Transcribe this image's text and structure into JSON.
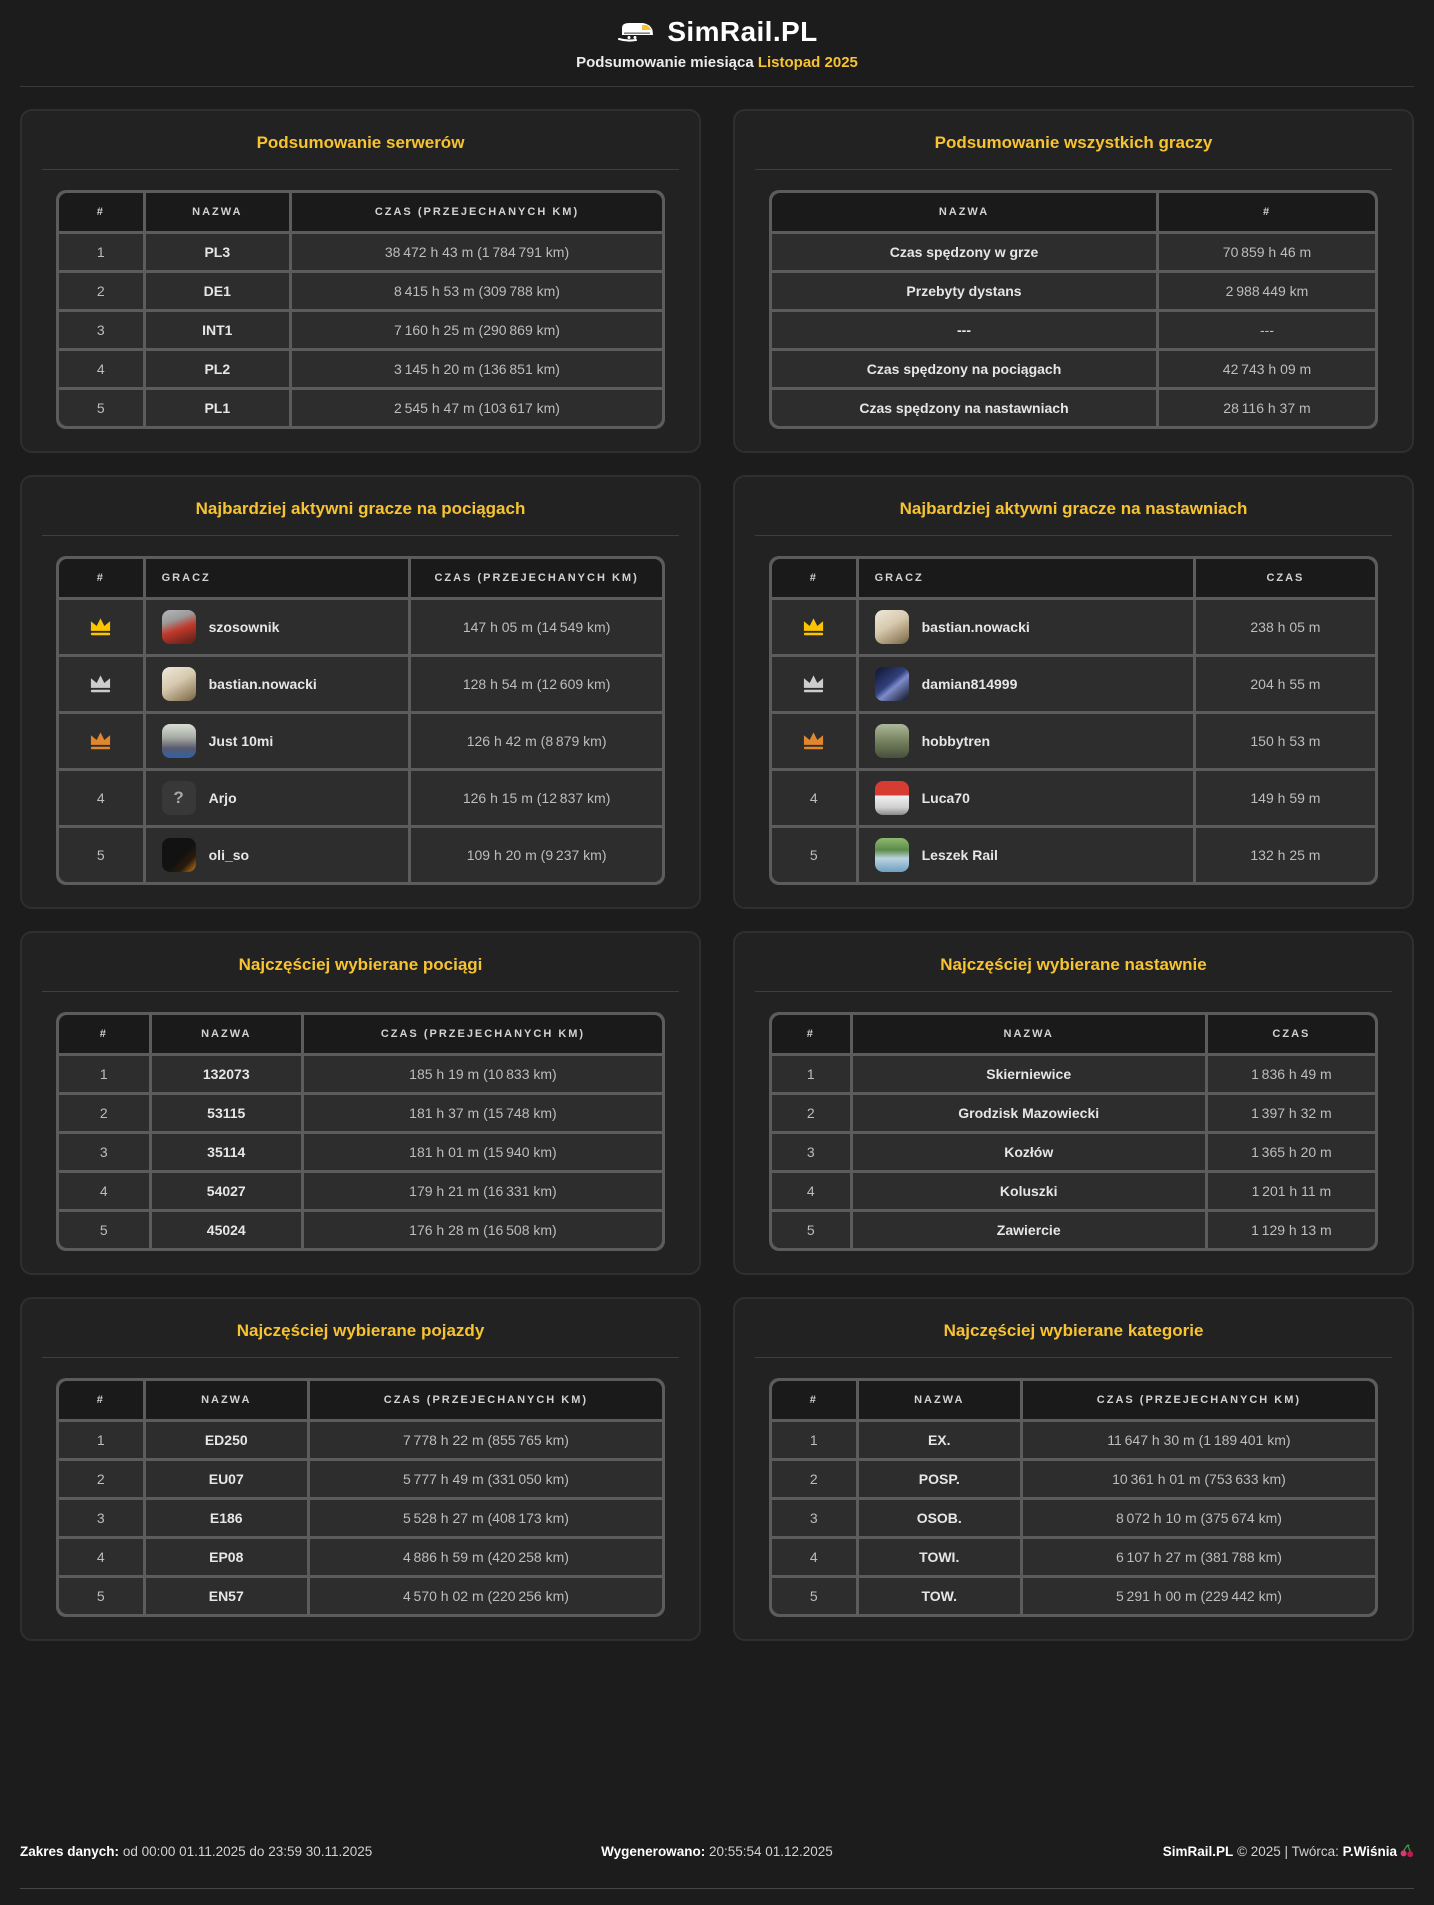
{
  "header": {
    "title": "SimRail.PL",
    "subtitle_prefix": "Podsumowanie miesiąca",
    "subtitle_month": "Listopad 2025",
    "logo_icon": "train-icon"
  },
  "colors": {
    "accent": "#f7c331",
    "page_bg": "#1c1c1c",
    "panel_bg": "#222222",
    "table_border": "#5c5c5c",
    "header_cell_bg": "#1a1a1a",
    "cell_bg": "#2d2d2d",
    "crown": {
      "gold": "#fdc500",
      "silver": "#cdcdcd",
      "bronze": "#e0862e"
    }
  },
  "tables": {
    "servers": {
      "title": "Podsumowanie serwerów",
      "columns": [
        {
          "label": "#",
          "width": "12%"
        },
        {
          "label": "NAZWA",
          "width": "22%",
          "bold": true
        },
        {
          "label": "CZAS (PRZEJECHANYCH KM)"
        }
      ],
      "rows": [
        [
          "1",
          "PL3",
          "38 472 h 43 m (1 784 791 km)"
        ],
        [
          "2",
          "DE1",
          "8 415 h 53 m (309 788 km)"
        ],
        [
          "3",
          "INT1",
          "7 160 h 25 m (290 869 km)"
        ],
        [
          "4",
          "PL2",
          "3 145 h 20 m (136 851 km)"
        ],
        [
          "5",
          "PL1",
          "2 545 h 47 m (103 617 km)"
        ]
      ]
    },
    "overall": {
      "title": "Podsumowanie wszystkich graczy",
      "columns": [
        {
          "label": "NAZWA",
          "bold": true
        },
        {
          "label": "#",
          "width": "34%"
        }
      ],
      "rows": [
        [
          "Czas spędzony w grze",
          "70 859 h 46 m"
        ],
        [
          "Przebyty dystans",
          "2 988 449 km"
        ],
        [
          "---",
          "---"
        ],
        [
          "Czas spędzony na pociągach",
          "42 743 h 09 m"
        ],
        [
          "Czas spędzony na nastawniach",
          "28 116 h 37 m"
        ]
      ]
    },
    "players_trains": {
      "title": "Najbardziej aktywni gracze na pociągach",
      "columns": [
        {
          "label": "#",
          "width": "12%"
        },
        {
          "label": "GRACZ",
          "align": "left",
          "bold": true
        },
        {
          "label": "CZAS (PRZEJECHANYCH KM)",
          "width": "40%"
        }
      ],
      "rows": [
        [
          {
            "crown": "gold"
          },
          {
            "player": {
              "name": "szosownik",
              "tone": "gold",
              "avatar_bg": "linear-gradient(160deg,#b7b7b7 0%,#9b9b9b 30%,#c0392b 55%,#71241c 88%)"
            }
          },
          "147 h 05 m (14 549 km)"
        ],
        [
          {
            "crown": "silver"
          },
          {
            "player": {
              "name": "bastian.nowacki",
              "avatar_bg": "linear-gradient(150deg,#efe9da 0%,#d6c9ae 45%,#9c8a69 80%,#6e5f45 100%)"
            }
          },
          "128 h 54 m (12 609 km)"
        ],
        [
          {
            "crown": "bronze"
          },
          {
            "player": {
              "name": "Just 10mi",
              "tone": "bronze",
              "avatar_bg": "linear-gradient(180deg,#d8ded6 0%,#a7aba3 40%,#57596e 72%,#2f62a8 100%)"
            }
          },
          "126 h 42 m (8 879 km)"
        ],
        [
          "4",
          {
            "player": {
              "name": "Arjo",
              "avatar_bg": "#383838",
              "avatar_glyph": "?"
            }
          },
          "126 h 15 m (12 837 km)"
        ],
        [
          "5",
          {
            "player": {
              "name": "oli_so",
              "avatar_bg": "linear-gradient(135deg,#121212 55%,#2a1c0a 75%,#d07a1f 100%)"
            }
          },
          "109 h 20 m (9 237 km)"
        ]
      ]
    },
    "players_boxes": {
      "title": "Najbardziej aktywni gracze na nastawniach",
      "columns": [
        {
          "label": "#",
          "width": "12%"
        },
        {
          "label": "GRACZ",
          "align": "left",
          "bold": true
        },
        {
          "label": "CZAS",
          "width": "28%"
        }
      ],
      "rows": [
        [
          {
            "crown": "gold"
          },
          {
            "player": {
              "name": "bastian.nowacki",
              "tone": "gold",
              "avatar_bg": "linear-gradient(150deg,#efe9da 0%,#d6c9ae 45%,#9c8a69 80%,#6e5f45 100%)"
            }
          },
          "238 h 05 m"
        ],
        [
          {
            "crown": "silver"
          },
          {
            "player": {
              "name": "damian814999",
              "avatar_bg": "linear-gradient(140deg,#10142e 0%,#31407c 45%,#7d8cc9 58%,#0d0f20 100%)"
            }
          },
          "204 h 55 m"
        ],
        [
          {
            "crown": "bronze"
          },
          {
            "player": {
              "name": "hobbytren",
              "tone": "bronze",
              "avatar_bg": "linear-gradient(180deg,#aeb89b 0%,#75815f 50%,#46503a 100%)"
            }
          },
          "150 h 53 m"
        ],
        [
          "4",
          {
            "player": {
              "name": "Luca70",
              "avatar_bg": "linear-gradient(180deg,#d63c31 0%,#d63c31 42%,#f2f2f2 42%,#cfcfcf 78%,#8a8a8a 100%)"
            }
          },
          "149 h 59 m"
        ],
        [
          "5",
          {
            "player": {
              "name": "Leszek Rail",
              "avatar_bg": "linear-gradient(180deg,#8fb96f 0%,#5c8b4a 35%,#bcd3e0 60%,#6f9fc0 100%)"
            }
          },
          "132 h 25 m"
        ]
      ]
    },
    "trains": {
      "title": "Najczęściej wybierane pociągi",
      "columns": [
        {
          "label": "#",
          "width": "13%"
        },
        {
          "label": "NAZWA",
          "width": "23%",
          "bold": true
        },
        {
          "label": "CZAS (PRZEJECHANYCH KM)"
        }
      ],
      "rows": [
        [
          "1",
          "132073",
          "185 h 19 m (10 833 km)"
        ],
        [
          "2",
          "53115",
          "181 h 37 m (15 748 km)"
        ],
        [
          "3",
          "35114",
          "181 h 01 m (15 940 km)"
        ],
        [
          "4",
          "54027",
          "179 h 21 m (16 331 km)"
        ],
        [
          "5",
          "45024",
          "176 h 28 m (16 508 km)"
        ]
      ]
    },
    "boxes": {
      "title": "Najczęściej wybierane nastawnie",
      "columns": [
        {
          "label": "#",
          "width": "11%"
        },
        {
          "label": "NAZWA",
          "bold": true
        },
        {
          "label": "CZAS",
          "width": "26%"
        }
      ],
      "rows": [
        [
          "1",
          "Skierniewice",
          "1 836 h 49 m"
        ],
        [
          "2",
          "Grodzisk Mazowiecki",
          "1 397 h 32 m"
        ],
        [
          "3",
          "Kozłów",
          "1 365 h 20 m"
        ],
        [
          "4",
          "Koluszki",
          "1 201 h 11 m"
        ],
        [
          "5",
          "Zawiercie",
          "1 129 h 13 m"
        ]
      ]
    },
    "vehicles": {
      "title": "Najczęściej wybierane pojazdy",
      "columns": [
        {
          "label": "#",
          "width": "12%"
        },
        {
          "label": "NAZWA",
          "width": "25%",
          "bold": true
        },
        {
          "label": "CZAS (PRZEJECHANYCH KM)"
        }
      ],
      "rows": [
        [
          "1",
          "ED250",
          "7 778 h 22 m (855 765 km)"
        ],
        [
          "2",
          "EU07",
          "5 777 h 49 m (331 050 km)"
        ],
        [
          "3",
          "E186",
          "5 528 h 27 m (408 173 km)"
        ],
        [
          "4",
          "EP08",
          "4 886 h 59 m (420 258 km)"
        ],
        [
          "5",
          "EN57",
          "4 570 h 02 m (220 256 km)"
        ]
      ]
    },
    "categories": {
      "title": "Najczęściej wybierane kategorie",
      "columns": [
        {
          "label": "#",
          "width": "12%"
        },
        {
          "label": "NAZWA",
          "width": "25%",
          "bold": true
        },
        {
          "label": "CZAS (PRZEJECHANYCH KM)"
        }
      ],
      "rows": [
        [
          "1",
          "EX.",
          "11 647 h 30 m (1 189 401 km)"
        ],
        [
          "2",
          "POSP.",
          "10 361 h 01 m (753 633 km)"
        ],
        [
          "3",
          "OSOB.",
          "8 072 h 10 m (375 674 km)"
        ],
        [
          "4",
          "TOWI.",
          "6 107 h 27 m (381 788 km)"
        ],
        [
          "5",
          "TOW.",
          "5 291 h 00 m (229 442 km)"
        ]
      ]
    }
  },
  "footer": {
    "range_label": "Zakres danych:",
    "range_value": "od 00:00 01.11.2025 do 23:59 30.11.2025",
    "generated_label": "Wygenerowano:",
    "generated_value": "20:55:54 01.12.2025",
    "brand": "SimRail.PL",
    "middle": "© 2025 | Twórca:",
    "author": "P.Wiśnia",
    "author_icon": "cherries-icon"
  }
}
